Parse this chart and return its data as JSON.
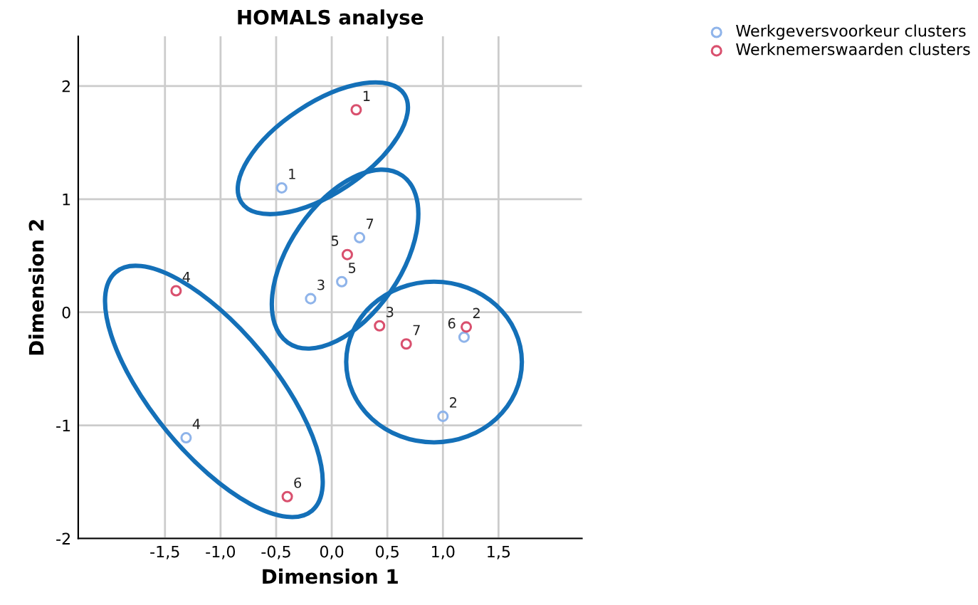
{
  "chart_data": {
    "type": "scatter",
    "title": "HOMALS analyse",
    "xlabel": "Dimension 1",
    "ylabel": "Dimension 2",
    "xlim": [
      -2.28,
      2.25
    ],
    "ylim": [
      -2,
      2.44
    ],
    "xticks": [
      {
        "value": -1.5,
        "label": "-1,5"
      },
      {
        "value": -1.0,
        "label": "-1,0"
      },
      {
        "value": -0.5,
        "label": "-0,5"
      },
      {
        "value": 0,
        "label": "0,0"
      },
      {
        "value": 0.5,
        "label": "0,5"
      },
      {
        "value": 1.0,
        "label": "1,0"
      },
      {
        "value": 1.5,
        "label": "1,5"
      }
    ],
    "yticks": [
      -2,
      -1,
      0,
      1,
      2
    ],
    "grid": true,
    "legend": "top right",
    "marker": "circle",
    "series": [
      {
        "name": "Werkgeversvoorkeur clusters",
        "color": "#8fb4ea",
        "x": [
          -0.45,
          0.25,
          0.09,
          -0.19,
          1.19,
          1.0,
          -1.31
        ],
        "values": [
          1.1,
          0.66,
          0.27,
          0.12,
          -0.22,
          -0.92,
          -1.11
        ]
      },
      {
        "name": "Werknemerswaarden clusters",
        "color": "#d9506e",
        "x": [
          0.22,
          0.14,
          -1.4,
          0.43,
          0.67,
          1.21,
          -0.4
        ],
        "values": [
          1.79,
          0.51,
          0.19,
          -0.12,
          -0.28,
          -0.13,
          -1.63
        ]
      }
    ],
    "annotations": [
      {
        "text": "1",
        "x": -0.45,
        "y": 1.1
      },
      {
        "text": "7",
        "x": 0.25,
        "y": 0.66
      },
      {
        "text": "5",
        "x": 0.09,
        "y": 0.27
      },
      {
        "text": "3",
        "x": -0.19,
        "y": 0.12
      },
      {
        "text": "6",
        "x": 1.19,
        "y": -0.22
      },
      {
        "text": "2",
        "x": 1.0,
        "y": -0.92
      },
      {
        "text": "4",
        "x": -1.31,
        "y": -1.11
      },
      {
        "text": "1",
        "x": 0.22,
        "y": 1.79
      },
      {
        "text": "5",
        "x": 0.14,
        "y": 0.51
      },
      {
        "text": "4",
        "x": -1.4,
        "y": 0.19
      },
      {
        "text": "3",
        "x": 0.43,
        "y": -0.12
      },
      {
        "text": "7",
        "x": 0.67,
        "y": -0.28
      },
      {
        "text": "2",
        "x": 1.21,
        "y": -0.13
      },
      {
        "text": "6",
        "x": -0.4,
        "y": -1.63
      }
    ]
  }
}
